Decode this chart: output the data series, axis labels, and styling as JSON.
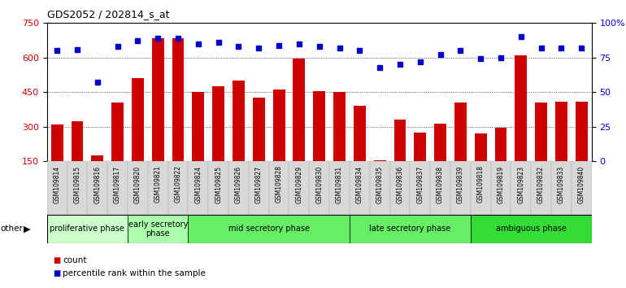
{
  "title": "GDS2052 / 202814_s_at",
  "samples": [
    "GSM109814",
    "GSM109815",
    "GSM109816",
    "GSM109817",
    "GSM109820",
    "GSM109821",
    "GSM109822",
    "GSM109824",
    "GSM109825",
    "GSM109826",
    "GSM109827",
    "GSM109828",
    "GSM109829",
    "GSM109830",
    "GSM109831",
    "GSM109834",
    "GSM109835",
    "GSM109836",
    "GSM109837",
    "GSM109838",
    "GSM109839",
    "GSM109818",
    "GSM109819",
    "GSM109823",
    "GSM109832",
    "GSM109833",
    "GSM109840"
  ],
  "counts": [
    310,
    325,
    175,
    405,
    510,
    685,
    685,
    450,
    475,
    500,
    425,
    460,
    595,
    455,
    450,
    390,
    155,
    330,
    275,
    315,
    405,
    270,
    295,
    610,
    405,
    410,
    410
  ],
  "percentiles": [
    80,
    81,
    57,
    83,
    87,
    89,
    89,
    85,
    86,
    83,
    82,
    84,
    85,
    83,
    82,
    80,
    68,
    70,
    72,
    77,
    80,
    74,
    75,
    90,
    82,
    82,
    82
  ],
  "phase_data": [
    {
      "label": "proliferative phase",
      "start": 0,
      "end": 4,
      "color": "#ccffcc"
    },
    {
      "label": "early secretory\nphase",
      "start": 4,
      "end": 7,
      "color": "#aaffaa"
    },
    {
      "label": "mid secretory phase",
      "start": 7,
      "end": 15,
      "color": "#66ee66"
    },
    {
      "label": "late secretory phase",
      "start": 15,
      "end": 21,
      "color": "#66ee66"
    },
    {
      "label": "ambiguous phase",
      "start": 21,
      "end": 27,
      "color": "#33dd33"
    }
  ],
  "ylim_left": [
    150,
    750
  ],
  "ylim_right": [
    0,
    100
  ],
  "yticks_left": [
    150,
    300,
    450,
    600,
    750
  ],
  "yticks_right": [
    0,
    25,
    50,
    75,
    100
  ],
  "bar_color": "#cc0000",
  "dot_color": "#0000cc",
  "bg_color": "#ffffff",
  "tick_bg_color": "#d8d8d8",
  "grid_color": "#000000"
}
